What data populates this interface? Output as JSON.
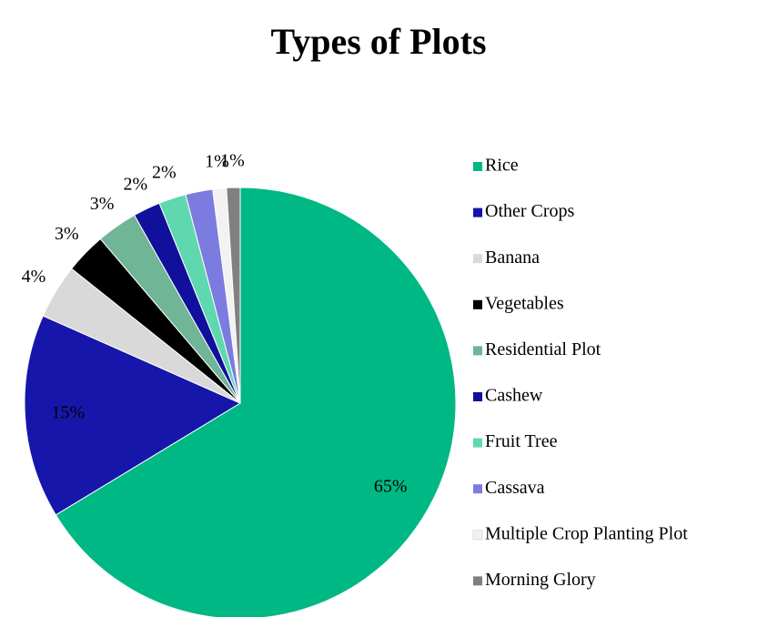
{
  "chart_data": {
    "type": "pie",
    "title": "Types of Plots",
    "categories": [
      "Rice",
      "Other Crops",
      "Banana",
      "Vegetables",
      "Residential Plot",
      "Cashew",
      "Fruit Tree",
      "Cassava",
      "Multiple Crop Planting Plot",
      "Morning Glory"
    ],
    "values": [
      65,
      15,
      4,
      3,
      3,
      2,
      2,
      2,
      1,
      1
    ],
    "value_labels": [
      "65%",
      "15%",
      "4%",
      "3%",
      "3%",
      "2%",
      "2%",
      null,
      "1%",
      "1%"
    ],
    "colors": [
      "#00b884",
      "#1616aa",
      "#d9d9d9",
      "#000000",
      "#6fb596",
      "#10109c",
      "#5fd8b0",
      "#7b7be0",
      "#f2f2f2",
      "#808080"
    ],
    "legend": "right"
  }
}
